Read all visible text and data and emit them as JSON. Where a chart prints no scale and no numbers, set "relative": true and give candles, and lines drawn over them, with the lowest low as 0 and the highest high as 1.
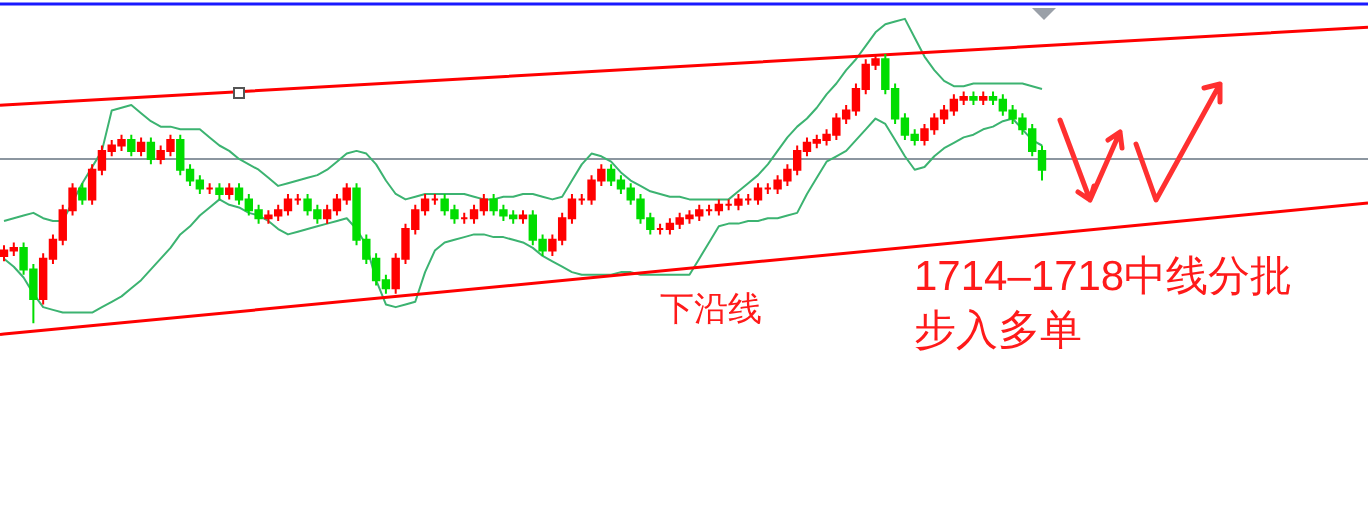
{
  "chart_data": {
    "type": "candlestick",
    "relative": true,
    "categories": [
      null,
      null,
      null,
      null,
      null,
      null,
      null,
      null,
      null,
      null,
      null,
      null,
      null,
      null,
      null,
      null,
      null,
      null,
      null,
      null,
      null,
      null,
      null,
      null,
      null,
      null,
      null,
      null,
      null,
      null,
      null,
      null,
      null,
      null,
      null,
      null,
      null,
      null,
      null,
      null,
      null,
      null,
      null,
      null,
      null,
      null,
      null,
      null,
      null,
      null,
      null,
      null,
      null,
      null,
      null,
      null,
      null,
      null,
      null,
      null,
      null,
      null,
      null,
      null,
      null,
      null,
      null,
      null,
      null,
      null,
      null,
      null,
      null,
      null,
      null,
      null,
      null,
      null,
      null,
      null,
      null,
      null,
      null,
      null,
      null,
      null,
      null,
      null,
      null,
      null,
      null,
      null,
      null,
      null,
      null,
      null,
      null,
      null,
      null,
      null,
      null,
      null,
      null,
      null,
      null,
      null,
      null
    ],
    "ohlc": [
      [
        0.25,
        0.29,
        0.23,
        0.27
      ],
      [
        0.27,
        0.3,
        0.25,
        0.28
      ],
      [
        0.28,
        0.3,
        0.18,
        0.2
      ],
      [
        0.2,
        0.22,
        0.0,
        0.09
      ],
      [
        0.09,
        0.26,
        0.07,
        0.24
      ],
      [
        0.24,
        0.33,
        0.22,
        0.31
      ],
      [
        0.31,
        0.44,
        0.29,
        0.42
      ],
      [
        0.42,
        0.52,
        0.4,
        0.5
      ],
      [
        0.5,
        0.52,
        0.44,
        0.46
      ],
      [
        0.46,
        0.59,
        0.44,
        0.57
      ],
      [
        0.57,
        0.66,
        0.55,
        0.64
      ],
      [
        0.64,
        0.68,
        0.62,
        0.66
      ],
      [
        0.66,
        0.7,
        0.64,
        0.68
      ],
      [
        0.68,
        0.7,
        0.62,
        0.64
      ],
      [
        0.64,
        0.69,
        0.62,
        0.67
      ],
      [
        0.67,
        0.69,
        0.59,
        0.61
      ],
      [
        0.61,
        0.66,
        0.59,
        0.64
      ],
      [
        0.64,
        0.7,
        0.62,
        0.68
      ],
      [
        0.68,
        0.7,
        0.55,
        0.57
      ],
      [
        0.57,
        0.59,
        0.51,
        0.53
      ],
      [
        0.53,
        0.55,
        0.48,
        0.5
      ],
      [
        0.5,
        0.52,
        0.48,
        0.5
      ],
      [
        0.5,
        0.52,
        0.46,
        0.48
      ],
      [
        0.48,
        0.52,
        0.46,
        0.5
      ],
      [
        0.5,
        0.52,
        0.44,
        0.46
      ],
      [
        0.46,
        0.48,
        0.4,
        0.42
      ],
      [
        0.42,
        0.44,
        0.37,
        0.39
      ],
      [
        0.39,
        0.42,
        0.37,
        0.4
      ],
      [
        0.4,
        0.44,
        0.38,
        0.42
      ],
      [
        0.42,
        0.48,
        0.4,
        0.46
      ],
      [
        0.46,
        0.48,
        0.44,
        0.46
      ],
      [
        0.46,
        0.48,
        0.4,
        0.42
      ],
      [
        0.42,
        0.44,
        0.37,
        0.39
      ],
      [
        0.39,
        0.44,
        0.37,
        0.42
      ],
      [
        0.42,
        0.48,
        0.4,
        0.46
      ],
      [
        0.46,
        0.52,
        0.44,
        0.5
      ],
      [
        0.5,
        0.52,
        0.29,
        0.31
      ],
      [
        0.31,
        0.33,
        0.22,
        0.24
      ],
      [
        0.24,
        0.26,
        0.14,
        0.16
      ],
      [
        0.16,
        0.18,
        0.11,
        0.13
      ],
      [
        0.13,
        0.26,
        0.11,
        0.24
      ],
      [
        0.24,
        0.37,
        0.22,
        0.35
      ],
      [
        0.35,
        0.44,
        0.33,
        0.42
      ],
      [
        0.42,
        0.48,
        0.4,
        0.46
      ],
      [
        0.46,
        0.48,
        0.44,
        0.46
      ],
      [
        0.46,
        0.48,
        0.4,
        0.42
      ],
      [
        0.42,
        0.44,
        0.37,
        0.39
      ],
      [
        0.39,
        0.41,
        0.37,
        0.39
      ],
      [
        0.39,
        0.44,
        0.37,
        0.42
      ],
      [
        0.42,
        0.48,
        0.4,
        0.46
      ],
      [
        0.46,
        0.48,
        0.4,
        0.42
      ],
      [
        0.42,
        0.44,
        0.38,
        0.4
      ],
      [
        0.4,
        0.42,
        0.37,
        0.39
      ],
      [
        0.39,
        0.42,
        0.37,
        0.4
      ],
      [
        0.4,
        0.42,
        0.29,
        0.31
      ],
      [
        0.31,
        0.33,
        0.25,
        0.27
      ],
      [
        0.27,
        0.33,
        0.25,
        0.31
      ],
      [
        0.31,
        0.41,
        0.29,
        0.39
      ],
      [
        0.39,
        0.48,
        0.37,
        0.46
      ],
      [
        0.46,
        0.48,
        0.44,
        0.46
      ],
      [
        0.46,
        0.55,
        0.44,
        0.53
      ],
      [
        0.53,
        0.59,
        0.51,
        0.57
      ],
      [
        0.57,
        0.59,
        0.51,
        0.53
      ],
      [
        0.53,
        0.55,
        0.48,
        0.5
      ],
      [
        0.5,
        0.52,
        0.44,
        0.46
      ],
      [
        0.46,
        0.48,
        0.37,
        0.39
      ],
      [
        0.39,
        0.41,
        0.33,
        0.35
      ],
      [
        0.35,
        0.37,
        0.33,
        0.35
      ],
      [
        0.35,
        0.39,
        0.33,
        0.37
      ],
      [
        0.37,
        0.41,
        0.35,
        0.39
      ],
      [
        0.39,
        0.42,
        0.37,
        0.4
      ],
      [
        0.4,
        0.44,
        0.38,
        0.42
      ],
      [
        0.42,
        0.44,
        0.4,
        0.42
      ],
      [
        0.42,
        0.46,
        0.4,
        0.44
      ],
      [
        0.44,
        0.46,
        0.42,
        0.44
      ],
      [
        0.44,
        0.48,
        0.42,
        0.46
      ],
      [
        0.46,
        0.48,
        0.44,
        0.46
      ],
      [
        0.46,
        0.52,
        0.44,
        0.5
      ],
      [
        0.5,
        0.52,
        0.48,
        0.5
      ],
      [
        0.5,
        0.55,
        0.48,
        0.53
      ],
      [
        0.53,
        0.59,
        0.51,
        0.57
      ],
      [
        0.57,
        0.66,
        0.55,
        0.64
      ],
      [
        0.64,
        0.69,
        0.62,
        0.67
      ],
      [
        0.67,
        0.7,
        0.65,
        0.68
      ],
      [
        0.68,
        0.72,
        0.66,
        0.7
      ],
      [
        0.7,
        0.78,
        0.68,
        0.76
      ],
      [
        0.76,
        0.81,
        0.74,
        0.79
      ],
      [
        0.79,
        0.89,
        0.77,
        0.87
      ],
      [
        0.87,
        0.98,
        0.85,
        0.96
      ],
      [
        0.96,
        1.0,
        0.94,
        0.98
      ],
      [
        0.98,
        1.0,
        0.85,
        0.87
      ],
      [
        0.87,
        0.89,
        0.74,
        0.76
      ],
      [
        0.76,
        0.78,
        0.68,
        0.7
      ],
      [
        0.7,
        0.72,
        0.66,
        0.68
      ],
      [
        0.68,
        0.74,
        0.66,
        0.72
      ],
      [
        0.72,
        0.78,
        0.7,
        0.76
      ],
      [
        0.76,
        0.81,
        0.74,
        0.79
      ],
      [
        0.79,
        0.85,
        0.77,
        0.83
      ],
      [
        0.83,
        0.86,
        0.81,
        0.84
      ],
      [
        0.84,
        0.86,
        0.81,
        0.83
      ],
      [
        0.83,
        0.86,
        0.81,
        0.84
      ],
      [
        0.84,
        0.86,
        0.81,
        0.83
      ],
      [
        0.83,
        0.85,
        0.77,
        0.79
      ],
      [
        0.79,
        0.81,
        0.74,
        0.76
      ],
      [
        0.76,
        0.78,
        0.7,
        0.72
      ],
      [
        0.72,
        0.74,
        0.62,
        0.64
      ],
      [
        0.64,
        0.66,
        0.53,
        0.57
      ]
    ],
    "series": [
      {
        "type": "line",
        "color": "#3cb371",
        "values": [
          0.38,
          0.39,
          0.4,
          0.41,
          0.39,
          0.38,
          0.38,
          0.45,
          0.52,
          0.58,
          0.64,
          0.79,
          0.8,
          0.81,
          0.78,
          0.75,
          0.73,
          0.73,
          0.72,
          0.72,
          0.72,
          0.69,
          0.66,
          0.64,
          0.61,
          0.59,
          0.57,
          0.54,
          0.51,
          0.52,
          0.53,
          0.54,
          0.55,
          0.57,
          0.6,
          0.63,
          0.64,
          0.63,
          0.59,
          0.53,
          0.48,
          0.46,
          0.47,
          0.48,
          0.48,
          0.48,
          0.48,
          0.48,
          0.47,
          0.46,
          0.46,
          0.47,
          0.47,
          0.48,
          0.48,
          0.47,
          0.46,
          0.47,
          0.53,
          0.59,
          0.63,
          0.62,
          0.6,
          0.56,
          0.53,
          0.51,
          0.49,
          0.48,
          0.47,
          0.47,
          0.46,
          0.46,
          0.46,
          0.46,
          0.46,
          0.49,
          0.52,
          0.55,
          0.59,
          0.64,
          0.69,
          0.73,
          0.76,
          0.8,
          0.85,
          0.89,
          0.94,
          0.98,
          1.03,
          1.08,
          1.11,
          1.12,
          1.13,
          1.06,
          0.99,
          0.94,
          0.9,
          0.88,
          0.88,
          0.89,
          0.89,
          0.89,
          0.89,
          0.89,
          0.89,
          0.88,
          0.87
        ]
      },
      {
        "type": "line",
        "color": "#3cb371",
        "values": [
          0.24,
          0.21,
          0.17,
          0.11,
          0.06,
          0.05,
          0.04,
          0.04,
          0.04,
          0.04,
          0.06,
          0.08,
          0.1,
          0.13,
          0.16,
          0.2,
          0.24,
          0.28,
          0.33,
          0.36,
          0.4,
          0.43,
          0.46,
          0.44,
          0.43,
          0.41,
          0.4,
          0.38,
          0.35,
          0.33,
          0.34,
          0.35,
          0.36,
          0.37,
          0.38,
          0.39,
          0.35,
          0.29,
          0.16,
          0.07,
          0.06,
          0.07,
          0.08,
          0.19,
          0.27,
          0.3,
          0.31,
          0.32,
          0.33,
          0.33,
          0.32,
          0.32,
          0.31,
          0.3,
          0.28,
          0.25,
          0.23,
          0.21,
          0.19,
          0.18,
          0.18,
          0.18,
          0.18,
          0.19,
          0.19,
          0.18,
          0.18,
          0.18,
          0.18,
          0.18,
          0.18,
          0.24,
          0.3,
          0.36,
          0.37,
          0.37,
          0.38,
          0.38,
          0.39,
          0.39,
          0.4,
          0.41,
          0.48,
          0.54,
          0.6,
          0.62,
          0.64,
          0.68,
          0.72,
          0.76,
          0.74,
          0.68,
          0.62,
          0.57,
          0.58,
          0.62,
          0.65,
          0.67,
          0.69,
          0.7,
          0.72,
          0.73,
          0.75,
          0.76,
          0.72,
          0.68,
          0.66
        ]
      },
      {
        "type": "line",
        "color": "#ff0000",
        "values": [
          0.81,
          null,
          null,
          null,
          null,
          null,
          null,
          null,
          null,
          null,
          null,
          null,
          null,
          null,
          null,
          null,
          null,
          null,
          null,
          null,
          null,
          null,
          null,
          null,
          null,
          null,
          null,
          null,
          null,
          null,
          null,
          null,
          null,
          null,
          null,
          null,
          null,
          null,
          null,
          null,
          null,
          null,
          null,
          null,
          null,
          null,
          null,
          null,
          null,
          null,
          null,
          null,
          null,
          null,
          null,
          null,
          null,
          null,
          null,
          null,
          null,
          null,
          null,
          null,
          null,
          null,
          null,
          null,
          null,
          null,
          null,
          null,
          null,
          null,
          null,
          null,
          null,
          null,
          null,
          null,
          null,
          null,
          null,
          null,
          null,
          null,
          null,
          null,
          null,
          null,
          null,
          null,
          null,
          null,
          null,
          null,
          null,
          null,
          null,
          null,
          null,
          null,
          null,
          null,
          null,
          null,
          1.03
        ]
      },
      {
        "type": "line",
        "color": "#ff0000",
        "values": [
          -0.04,
          null,
          null,
          null,
          null,
          null,
          null,
          null,
          null,
          null,
          null,
          null,
          null,
          null,
          null,
          null,
          null,
          null,
          null,
          null,
          null,
          null,
          null,
          null,
          null,
          null,
          null,
          null,
          null,
          null,
          null,
          null,
          null,
          null,
          null,
          null,
          null,
          null,
          null,
          null,
          null,
          null,
          null,
          null,
          null,
          null,
          null,
          null,
          null,
          null,
          null,
          null,
          null,
          null,
          null,
          null,
          null,
          null,
          null,
          null,
          null,
          null,
          null,
          null,
          null,
          null,
          null,
          null,
          null,
          null,
          null,
          null,
          null,
          null,
          null,
          null,
          null,
          null,
          null,
          null,
          null,
          null,
          null,
          null,
          null,
          null,
          null,
          null,
          null,
          null,
          null,
          null,
          null,
          null,
          null,
          null,
          null,
          null,
          null,
          null,
          null,
          null,
          null,
          null,
          null,
          null,
          0.33
        ]
      }
    ],
    "ref_lines": [
      {
        "axis": "y",
        "value": 0.61,
        "color": "#8c96a0"
      }
    ],
    "annotations": [
      "下沿线",
      "1714–1718中线分批",
      "步入多单"
    ]
  }
}
